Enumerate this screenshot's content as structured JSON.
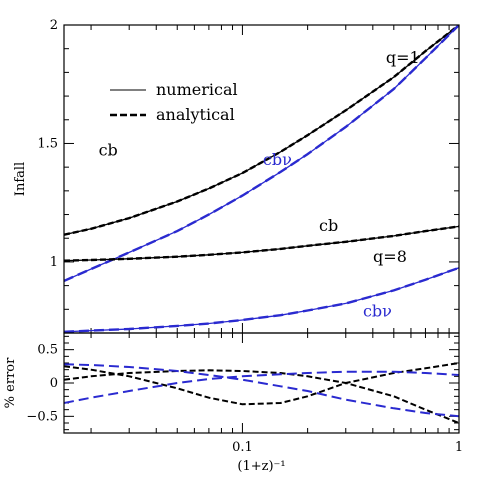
{
  "chart_data": [
    {
      "type": "line",
      "ylabel": "Infall",
      "xscale": "log",
      "xlim": [
        0.015,
        1
      ],
      "ylim": [
        0.7,
        2
      ],
      "yticks": [
        "1",
        "1.5",
        "2"
      ],
      "legend": {
        "position": "top-left",
        "entries": [
          {
            "label": "numerical",
            "style": "solid"
          },
          {
            "label": "analytical",
            "style": "dashed"
          }
        ]
      },
      "annotations": [
        {
          "text": "q=1",
          "x": 0.55,
          "y": 1.84,
          "color": "#000000"
        },
        {
          "text": "cb",
          "x": 0.024,
          "y": 1.45,
          "color": "#000000"
        },
        {
          "text": "cbν",
          "x": 0.145,
          "y": 1.41,
          "color": "#2a2ad0"
        },
        {
          "text": "cb",
          "x": 0.25,
          "y": 1.13,
          "color": "#000000"
        },
        {
          "text": "q=8",
          "x": 0.48,
          "y": 1.0,
          "color": "#000000"
        },
        {
          "text": "cbν",
          "x": 0.42,
          "y": 0.77,
          "color": "#2a2ad0"
        }
      ],
      "series": [
        {
          "group": "q=1",
          "component": "cb",
          "color": "#000000",
          "x": [
            0.015,
            0.02,
            0.03,
            0.05,
            0.07,
            0.1,
            0.15,
            0.2,
            0.3,
            0.5,
            0.7,
            1.0
          ],
          "y": [
            1.115,
            1.14,
            1.185,
            1.255,
            1.31,
            1.375,
            1.465,
            1.535,
            1.64,
            1.78,
            1.89,
            2.0
          ]
        },
        {
          "group": "q=1",
          "component": "cbν",
          "color": "#2a2ad0",
          "x": [
            0.015,
            0.02,
            0.03,
            0.05,
            0.07,
            0.1,
            0.15,
            0.2,
            0.3,
            0.5,
            0.7,
            1.0
          ],
          "y": [
            0.92,
            0.97,
            1.04,
            1.13,
            1.2,
            1.28,
            1.38,
            1.455,
            1.57,
            1.73,
            1.86,
            2.0
          ]
        },
        {
          "group": "q=8",
          "component": "cb",
          "color": "#000000",
          "x": [
            0.015,
            0.02,
            0.03,
            0.05,
            0.07,
            0.1,
            0.15,
            0.2,
            0.3,
            0.5,
            0.7,
            1.0
          ],
          "y": [
            1.005,
            1.008,
            1.013,
            1.022,
            1.03,
            1.04,
            1.055,
            1.068,
            1.085,
            1.11,
            1.13,
            1.15
          ]
        },
        {
          "group": "q=8",
          "component": "cbν",
          "color": "#2a2ad0",
          "x": [
            0.015,
            0.02,
            0.03,
            0.05,
            0.07,
            0.1,
            0.15,
            0.2,
            0.3,
            0.5,
            0.7,
            1.0
          ],
          "y": [
            0.705,
            0.71,
            0.717,
            0.73,
            0.74,
            0.755,
            0.775,
            0.795,
            0.825,
            0.88,
            0.925,
            0.975
          ]
        }
      ]
    },
    {
      "type": "line",
      "xlabel": "(1+z)⁻¹",
      "ylabel": "% error",
      "xscale": "log",
      "xlim": [
        0.015,
        1
      ],
      "ylim": [
        -0.75,
        0.75
      ],
      "xticks": [
        "0.1",
        "1"
      ],
      "yticks": [
        "0.5",
        "0",
        "−0.5"
      ],
      "series": [
        {
          "color": "#000000",
          "x": [
            0.015,
            0.02,
            0.03,
            0.05,
            0.07,
            0.1,
            0.15,
            0.2,
            0.3,
            0.5,
            0.7,
            1.0
          ],
          "y": [
            0.25,
            0.2,
            0.1,
            -0.08,
            -0.22,
            -0.32,
            -0.3,
            -0.2,
            0.0,
            0.15,
            0.22,
            0.3
          ]
        },
        {
          "color": "#000000",
          "x": [
            0.015,
            0.02,
            0.03,
            0.05,
            0.07,
            0.1,
            0.15,
            0.2,
            0.3,
            0.5,
            0.7,
            1.0
          ],
          "y": [
            0.05,
            0.1,
            0.15,
            0.18,
            0.19,
            0.18,
            0.15,
            0.1,
            0.0,
            -0.2,
            -0.4,
            -0.6
          ]
        },
        {
          "color": "#2a2ad0",
          "x": [
            0.015,
            0.02,
            0.03,
            0.05,
            0.07,
            0.1,
            0.15,
            0.2,
            0.3,
            0.5,
            0.7,
            1.0
          ],
          "y": [
            0.28,
            0.27,
            0.24,
            0.18,
            0.12,
            0.05,
            -0.05,
            -0.12,
            -0.25,
            -0.38,
            -0.45,
            -0.5
          ]
        },
        {
          "color": "#2a2ad0",
          "x": [
            0.015,
            0.02,
            0.03,
            0.05,
            0.07,
            0.1,
            0.15,
            0.2,
            0.3,
            0.5,
            0.7,
            1.0
          ],
          "y": [
            -0.3,
            -0.22,
            -0.12,
            0.0,
            0.06,
            0.1,
            0.13,
            0.15,
            0.17,
            0.17,
            0.15,
            0.12
          ]
        }
      ]
    }
  ]
}
